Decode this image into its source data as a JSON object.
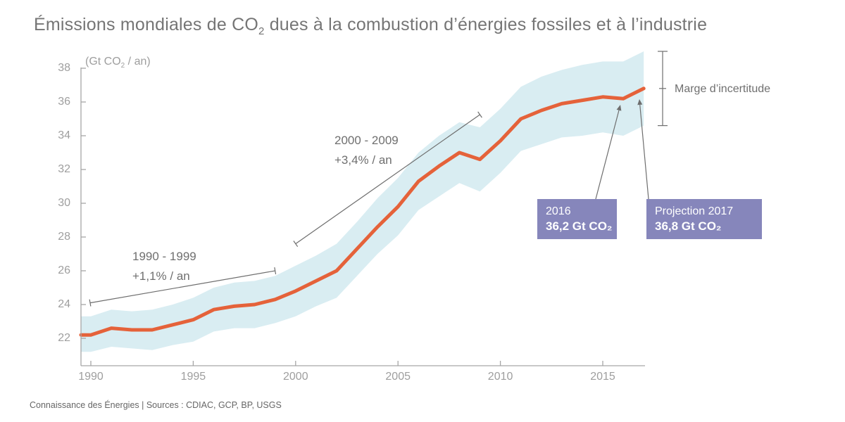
{
  "title": {
    "part1": "Émissions mondiales de CO",
    "sub": "2",
    "part2": " dues à la combustion d’énergies fossiles et à l’industrie"
  },
  "y_axis": {
    "unit_part1": "(Gt CO",
    "unit_sub": "2",
    "unit_part2": " / an)",
    "ticks": [
      22,
      24,
      26,
      28,
      30,
      32,
      34,
      36,
      38
    ]
  },
  "x_axis": {
    "ticks": [
      1990,
      1995,
      2000,
      2005,
      2010,
      2015
    ]
  },
  "annotations": {
    "period1": {
      "label": "1990 - 1999",
      "rate": "+1,1% / an"
    },
    "period2": {
      "label": "2000 - 2009",
      "rate": "+3,4% / an"
    },
    "uncertainty_label": "Marge d’incertitude",
    "callout_2016": {
      "line1": "2016",
      "line2": "36,2 Gt CO₂"
    },
    "callout_2017": {
      "line1": "Projection 2017",
      "line2": "36,8 Gt CO₂"
    }
  },
  "footer": {
    "credit": "Connaissance des Énergies | Sources : CDIAC, GCP, BP, USGS"
  },
  "colors": {
    "line": "#e5623a",
    "band": "#d9edf2",
    "callout_bg": "#8686bb",
    "annotation": "#6e6e6e",
    "axis": "#a6a6a6",
    "tick_text": "#9e9e9e",
    "title_text": "#757575"
  },
  "chart_data": {
    "type": "line",
    "title": "Émissions mondiales de CO2 dues à la combustion d’énergies fossiles et à l’industrie",
    "ylabel": "Gt CO2 / an",
    "xlabel": "",
    "xlim": [
      1990,
      2017
    ],
    "ylim": [
      21,
      39
    ],
    "grid": false,
    "legend": false,
    "x": [
      1990,
      1991,
      1992,
      1993,
      1994,
      1995,
      1996,
      1997,
      1998,
      1999,
      2000,
      2001,
      2002,
      2003,
      2004,
      2005,
      2006,
      2007,
      2008,
      2009,
      2010,
      2011,
      2012,
      2013,
      2014,
      2015,
      2016,
      2017
    ],
    "series": [
      {
        "name": "Émissions de CO2 (Gt CO2 / an)",
        "color": "#e5623a",
        "values": [
          22.2,
          22.6,
          22.5,
          22.5,
          22.8,
          23.1,
          23.7,
          23.9,
          24.0,
          24.3,
          24.8,
          25.4,
          26.0,
          27.3,
          28.6,
          29.8,
          31.3,
          32.2,
          33.0,
          32.6,
          33.7,
          35.0,
          35.5,
          35.9,
          36.1,
          36.3,
          36.2,
          36.8
        ]
      },
      {
        "name": "Marge d’incertitude (borne haute)",
        "color": "#d9edf2",
        "values": [
          23.3,
          23.7,
          23.6,
          23.7,
          24.0,
          24.4,
          25.0,
          25.3,
          25.4,
          25.7,
          26.3,
          26.9,
          27.6,
          28.9,
          30.3,
          31.5,
          33.0,
          34.0,
          34.8,
          34.5,
          35.6,
          36.9,
          37.5,
          37.9,
          38.2,
          38.4,
          38.4,
          39.0
        ]
      },
      {
        "name": "Marge d’incertitude (borne basse)",
        "color": "#d9edf2",
        "values": [
          21.2,
          21.5,
          21.4,
          21.3,
          21.6,
          21.8,
          22.4,
          22.6,
          22.6,
          22.9,
          23.3,
          23.9,
          24.4,
          25.7,
          27.0,
          28.1,
          29.6,
          30.4,
          31.2,
          30.7,
          31.8,
          33.1,
          33.5,
          33.9,
          34.0,
          34.2,
          34.0,
          34.6
        ]
      }
    ],
    "annotations": [
      {
        "text": "1990 - 1999 : +1,1% / an",
        "x_range": [
          1990,
          1999
        ]
      },
      {
        "text": "2000 - 2009 : +3,4% / an",
        "x_range": [
          2000,
          2009
        ]
      },
      {
        "text": "2016 : 36,2 Gt CO2",
        "x": 2016,
        "y": 36.2
      },
      {
        "text": "Projection 2017 : 36,8 Gt CO2",
        "x": 2017,
        "y": 36.8
      }
    ]
  }
}
